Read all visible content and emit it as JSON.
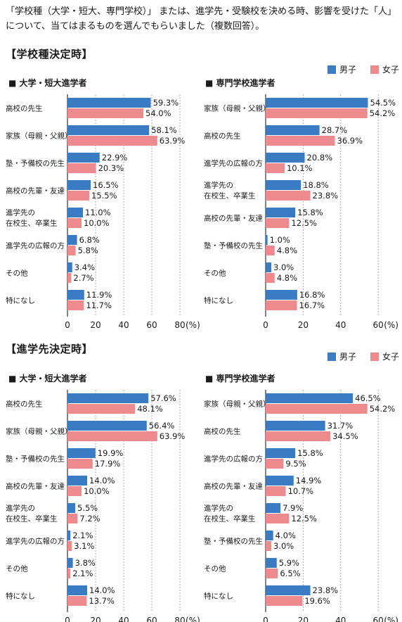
{
  "intro": "「学校種（大学・短大、専門学校）」 または、進学先・受験校を決める時、影響を受けた「人」について、当てはまるものを選んでもらいました（複数回答）。",
  "sections": [
    {
      "title": "【学校種決定時】"
    },
    {
      "title": "【進学先決定時】"
    }
  ],
  "legend": {
    "male": "男子",
    "female": "女子"
  },
  "colors": {
    "male": "#3a7cc3",
    "female": "#ec8a8e",
    "axis": "#333333",
    "grid": "#999999"
  },
  "chart_data": [
    {
      "type": "bar",
      "title": "■ 大学・短大進学者",
      "categories": [
        "高校の先生",
        "家族（母親・父親）",
        "塾・予備校の先生",
        "高校の先輩・友達",
        "進学先の\n在校生、卒業生",
        "進学先の広報の方",
        "その他",
        "特になし"
      ],
      "series": [
        {
          "name": "男子",
          "values": [
            59.3,
            58.1,
            22.9,
            16.5,
            11.0,
            6.8,
            3.4,
            11.9
          ]
        },
        {
          "name": "女子",
          "values": [
            54.0,
            63.9,
            20.3,
            15.5,
            10.0,
            5.8,
            2.7,
            11.7
          ]
        }
      ],
      "xlim": [
        0,
        80
      ],
      "xticks": [
        "0",
        "20",
        "40",
        "60",
        "80"
      ],
      "unit": "(%)"
    },
    {
      "type": "bar",
      "title": "■ 専門学校進学者",
      "categories": [
        "家族（母親・父親）",
        "高校の先生",
        "進学先の広報の方",
        "進学先の\n在校生、卒業生",
        "高校の先輩・友達",
        "塾・予備校の先生",
        "その他",
        "特になし"
      ],
      "series": [
        {
          "name": "男子",
          "values": [
            54.5,
            28.7,
            20.8,
            18.8,
            15.8,
            1.0,
            3.0,
            16.8
          ]
        },
        {
          "name": "女子",
          "values": [
            54.2,
            36.9,
            10.1,
            23.8,
            12.5,
            4.8,
            4.8,
            16.7
          ]
        }
      ],
      "xlim": [
        0,
        60
      ],
      "xticks": [
        "0",
        "20",
        "40",
        "60"
      ],
      "unit": "(%)"
    },
    {
      "type": "bar",
      "title": "■ 大学・短大進学者",
      "categories": [
        "高校の先生",
        "家族（母親・父親）",
        "塾・予備校の先生",
        "高校の先輩・友達",
        "進学先の\n在校生、卒業生",
        "進学先の広報の方",
        "その他",
        "特になし"
      ],
      "series": [
        {
          "name": "男子",
          "values": [
            57.6,
            56.4,
            19.9,
            14.0,
            5.5,
            2.1,
            3.8,
            14.0
          ]
        },
        {
          "name": "女子",
          "values": [
            48.1,
            63.9,
            17.9,
            10.0,
            7.2,
            3.1,
            2.1,
            13.7
          ]
        }
      ],
      "xlim": [
        0,
        80
      ],
      "xticks": [
        "0",
        "20",
        "40",
        "60",
        "80"
      ],
      "unit": "(%)"
    },
    {
      "type": "bar",
      "title": "■ 専門学校進学者",
      "categories": [
        "家族（母親・父親）",
        "高校の先生",
        "進学先の広報の方",
        "高校の先輩・友達",
        "進学先の\n在校生、卒業生",
        "塾・予備校の先生",
        "その他",
        "特になし"
      ],
      "series": [
        {
          "name": "男子",
          "values": [
            46.5,
            31.7,
            15.8,
            14.9,
            7.9,
            4.0,
            5.9,
            23.8
          ]
        },
        {
          "name": "女子",
          "values": [
            54.2,
            34.5,
            9.5,
            10.7,
            12.5,
            3.0,
            6.5,
            19.6
          ]
        }
      ],
      "xlim": [
        0,
        60
      ],
      "xticks": [
        "0",
        "20",
        "40",
        "60"
      ],
      "unit": "(%)"
    }
  ]
}
